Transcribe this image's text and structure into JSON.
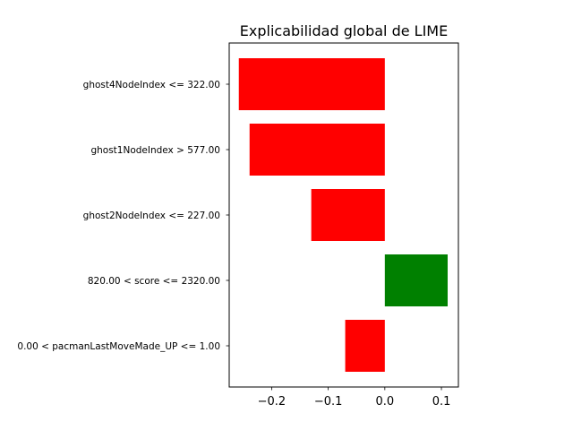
{
  "chart_data": {
    "type": "bar",
    "orientation": "horizontal",
    "title": "Explicabilidad global de LIME",
    "xlabel": "",
    "ylabel": "",
    "xlim": [
      -0.275,
      0.13
    ],
    "xticks": [
      -0.2,
      -0.1,
      0.0,
      0.1
    ],
    "xtick_labels": [
      "−0.2",
      "−0.1",
      "0.0",
      "0.1"
    ],
    "grid": false,
    "categories": [
      "ghost4NodeIndex <= 322.00",
      "ghost1NodeIndex > 577.00",
      "ghost2NodeIndex <= 227.00",
      "820.00 < score <= 2320.00",
      "0.00 < pacmanLastMoveMade_UP <= 1.00"
    ],
    "values": [
      -0.258,
      -0.239,
      -0.13,
      0.111,
      -0.07
    ],
    "colors": {
      "negative": "#ff0000",
      "positive": "#008000"
    }
  }
}
